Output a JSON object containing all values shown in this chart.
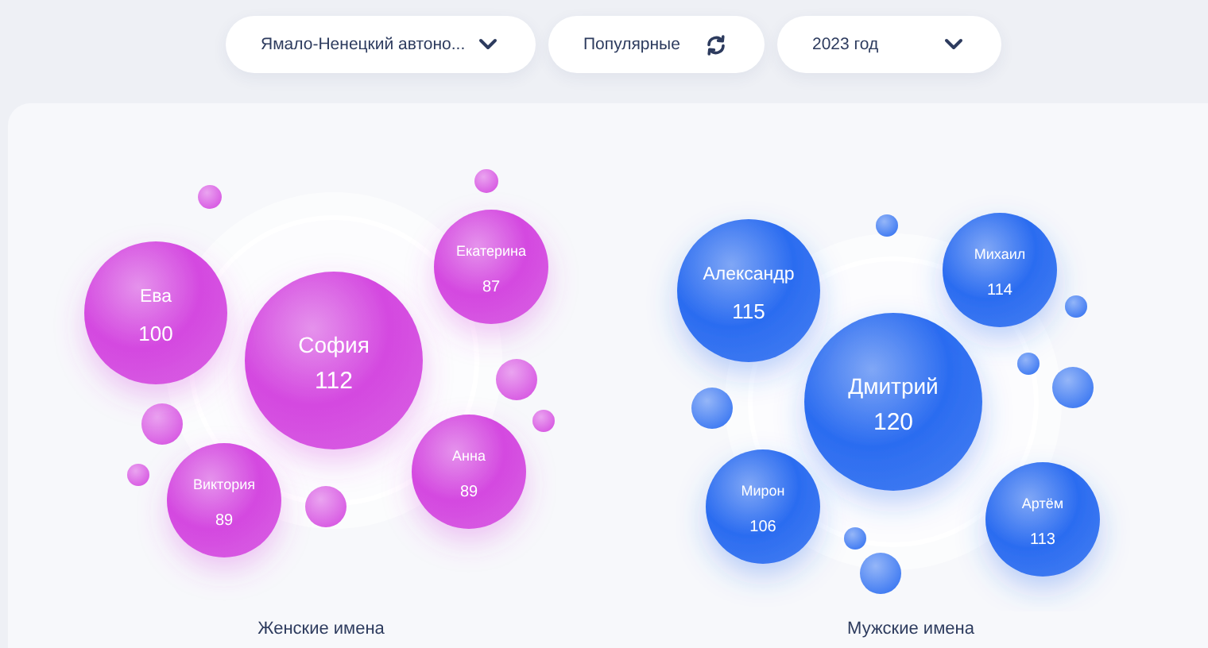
{
  "chart_data": [
    {
      "type": "other",
      "annotations": [
        "Ямало-Ненецкий автоно...",
        "Популярные",
        "2023 год"
      ]
    },
    {
      "type": "other",
      "title": "Женские имена",
      "categories": [
        "София",
        "Ева",
        "Екатерина",
        "Анна",
        "Виктория"
      ],
      "values": [
        112,
        100,
        87,
        89,
        89
      ],
      "color": "#d449e0",
      "data_labels": true
    },
    {
      "type": "other",
      "title": "Мужские имена",
      "categories": [
        "Дмитрий",
        "Александр",
        "Михаил",
        "Артём",
        "Мирон"
      ],
      "values": [
        120,
        115,
        114,
        113,
        106
      ],
      "color": "#2b6cf0",
      "data_labels": true
    }
  ]
}
